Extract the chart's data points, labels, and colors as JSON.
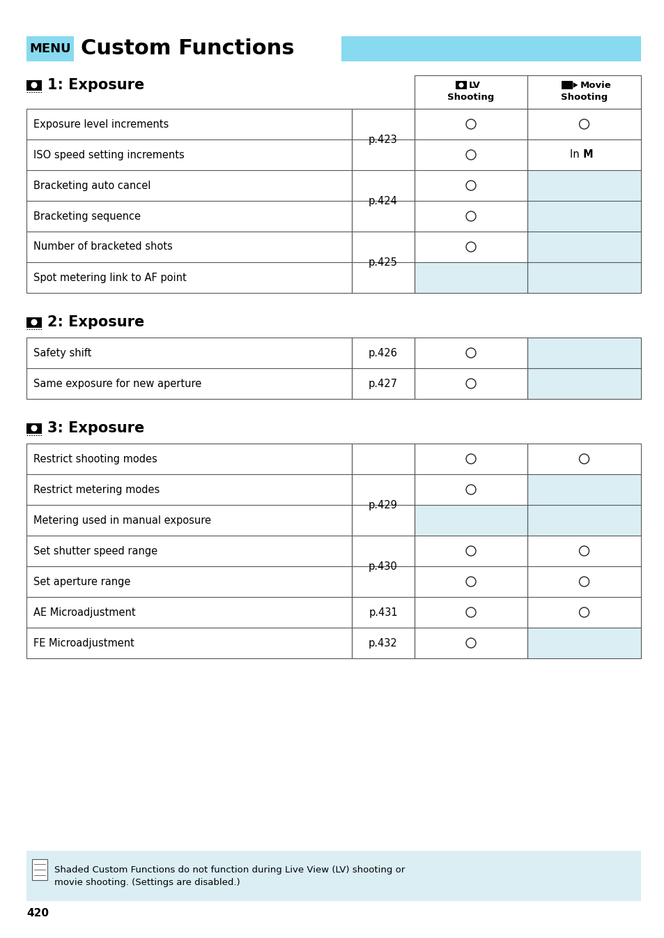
{
  "title": "Custom Functions",
  "menu_label": "MENU",
  "menu_color": "#87DAEF",
  "page_number": "420",
  "section1_title": "1: Exposure",
  "section2_title": "2: Exposure",
  "section3_title": "3: Exposure",
  "table1_rows": [
    {
      "label": "Exposure level increments",
      "page": "p.423",
      "page_span": 2,
      "lv": "O",
      "movie": "O",
      "lv_shaded": false,
      "movie_shaded": false
    },
    {
      "label": "ISO speed setting increments",
      "page": "",
      "page_span": 0,
      "lv": "O",
      "movie": "InM",
      "lv_shaded": false,
      "movie_shaded": false
    },
    {
      "label": "Bracketing auto cancel",
      "page": "p.424",
      "page_span": 2,
      "lv": "O",
      "movie": "",
      "lv_shaded": false,
      "movie_shaded": true
    },
    {
      "label": "Bracketing sequence",
      "page": "",
      "page_span": 0,
      "lv": "O",
      "movie": "",
      "lv_shaded": false,
      "movie_shaded": true
    },
    {
      "label": "Number of bracketed shots",
      "page": "p.425",
      "page_span": 2,
      "lv": "O",
      "movie": "",
      "lv_shaded": false,
      "movie_shaded": true
    },
    {
      "label": "Spot metering link to AF point",
      "page": "",
      "page_span": 0,
      "lv": "",
      "movie": "",
      "lv_shaded": true,
      "movie_shaded": true
    }
  ],
  "table2_rows": [
    {
      "label": "Safety shift",
      "page": "p.426",
      "page_span": 1,
      "lv": "O",
      "movie": "",
      "lv_shaded": false,
      "movie_shaded": true
    },
    {
      "label": "Same exposure for new aperture",
      "page": "p.427",
      "page_span": 1,
      "lv": "O",
      "movie": "",
      "lv_shaded": false,
      "movie_shaded": true
    }
  ],
  "table3_rows": [
    {
      "label": "Restrict shooting modes",
      "page": "",
      "page_span": 3,
      "lv": "O",
      "movie": "O",
      "lv_shaded": false,
      "movie_shaded": false
    },
    {
      "label": "Restrict metering modes",
      "page": "p.429",
      "page_span": 2,
      "lv": "O",
      "movie": "",
      "lv_shaded": false,
      "movie_shaded": true
    },
    {
      "label": "Metering used in manual exposure",
      "page": "",
      "page_span": 0,
      "lv": "",
      "movie": "",
      "lv_shaded": true,
      "movie_shaded": true
    },
    {
      "label": "Set shutter speed range",
      "page": "p.430",
      "page_span": 2,
      "lv": "O",
      "movie": "O",
      "lv_shaded": false,
      "movie_shaded": false
    },
    {
      "label": "Set aperture range",
      "page": "",
      "page_span": 0,
      "lv": "O",
      "movie": "O",
      "lv_shaded": false,
      "movie_shaded": false
    },
    {
      "label": "AE Microadjustment",
      "page": "p.431",
      "page_span": 1,
      "lv": "O",
      "movie": "O",
      "lv_shaded": false,
      "movie_shaded": false
    },
    {
      "label": "FE Microadjustment",
      "page": "p.432",
      "page_span": 1,
      "lv": "O",
      "movie": "",
      "lv_shaded": false,
      "movie_shaded": true
    }
  ],
  "note_text1": "Shaded Custom Functions do not function during Live View (LV) shooting or",
  "note_text2": "movie shooting. (Settings are disabled.)",
  "shaded_color": "#DAEEF3",
  "border_color": "#555555",
  "bg_color": "#FFFFFF"
}
